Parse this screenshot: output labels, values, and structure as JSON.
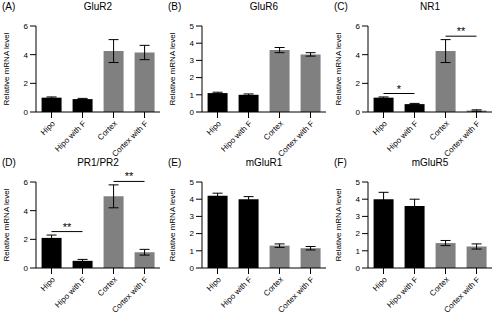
{
  "chart_data": [
    {
      "type": "bar",
      "panel": "(A)",
      "title": "GluR2",
      "y_label": "Relative mRNA level",
      "categories": [
        "Hipo",
        "Hipo with F",
        "Cortex",
        "Cortex with F"
      ],
      "values": [
        1.0,
        0.9,
        4.25,
        4.15
      ],
      "errors": [
        0.05,
        0.05,
        0.8,
        0.5
      ],
      "colors": [
        "#000000",
        "#000000",
        "#808080",
        "#808080"
      ],
      "ylim": [
        0,
        6
      ],
      "yticks": [
        0,
        2,
        4,
        6
      ],
      "annotations": []
    },
    {
      "type": "bar",
      "panel": "(B)",
      "title": "GluR6",
      "y_label": "Relative mRNA level",
      "categories": [
        "Hipo",
        "Hipo with F",
        "Cortex",
        "Cortex with F"
      ],
      "values": [
        1.1,
        1.0,
        3.6,
        3.35
      ],
      "errors": [
        0.05,
        0.05,
        0.15,
        0.1
      ],
      "colors": [
        "#000000",
        "#000000",
        "#808080",
        "#808080"
      ],
      "ylim": [
        0,
        5
      ],
      "yticks": [
        0,
        1,
        2,
        3,
        4,
        5
      ],
      "annotations": []
    },
    {
      "type": "bar",
      "panel": "(C)",
      "title": "NR1",
      "y_label": "Relative mRNA level",
      "categories": [
        "Hipo",
        "Hipo with F",
        "Cortex",
        "Cortex with F"
      ],
      "values": [
        1.0,
        0.55,
        4.25,
        0.1
      ],
      "errors": [
        0.05,
        0.05,
        0.8,
        0.05
      ],
      "colors": [
        "#000000",
        "#000000",
        "#808080",
        "#808080"
      ],
      "ylim": [
        0,
        6
      ],
      "yticks": [
        0,
        2,
        4,
        6
      ],
      "annotations": [
        {
          "text": "*",
          "between": [
            "Hipo",
            "Hipo with F"
          ]
        },
        {
          "text": "**",
          "between": [
            "Cortex",
            "Cortex with F"
          ]
        }
      ]
    },
    {
      "type": "bar",
      "panel": "(D)",
      "title": "PR1/PR2",
      "y_label": "Relative mRNA level",
      "categories": [
        "Hipo",
        "Hipo with F",
        "Cortex",
        "Cortex with F"
      ],
      "values": [
        2.1,
        0.5,
        5.0,
        1.1
      ],
      "errors": [
        0.2,
        0.1,
        0.8,
        0.2
      ],
      "colors": [
        "#000000",
        "#000000",
        "#808080",
        "#808080"
      ],
      "ylim": [
        0,
        6
      ],
      "yticks": [
        0,
        2,
        4,
        6
      ],
      "annotations": [
        {
          "text": "**",
          "between": [
            "Hipo",
            "Hipo with F"
          ]
        },
        {
          "text": "**",
          "between": [
            "Cortex",
            "Cortex with F"
          ]
        }
      ]
    },
    {
      "type": "bar",
      "panel": "(E)",
      "title": "mGluR1",
      "y_label": "Relative mRNA level",
      "categories": [
        "Hipo",
        "Hipo with F",
        "Cortex",
        "Cortex with F"
      ],
      "values": [
        4.2,
        4.0,
        1.3,
        1.15
      ],
      "errors": [
        0.15,
        0.15,
        0.1,
        0.1
      ],
      "colors": [
        "#000000",
        "#000000",
        "#808080",
        "#808080"
      ],
      "ylim": [
        0,
        5
      ],
      "yticks": [
        0,
        1,
        2,
        3,
        4,
        5
      ],
      "annotations": []
    },
    {
      "type": "bar",
      "panel": "(F)",
      "title": "mGluR5",
      "y_label": "Relative mRNA level",
      "categories": [
        "Hipo",
        "Hipo with F",
        "Cortex",
        "Cortex with F"
      ],
      "values": [
        4.0,
        3.6,
        1.45,
        1.25
      ],
      "errors": [
        0.4,
        0.4,
        0.15,
        0.15
      ],
      "colors": [
        "#000000",
        "#000000",
        "#808080",
        "#808080"
      ],
      "ylim": [
        0,
        5
      ],
      "yticks": [
        0,
        1,
        2,
        3,
        4,
        5
      ],
      "annotations": []
    }
  ]
}
